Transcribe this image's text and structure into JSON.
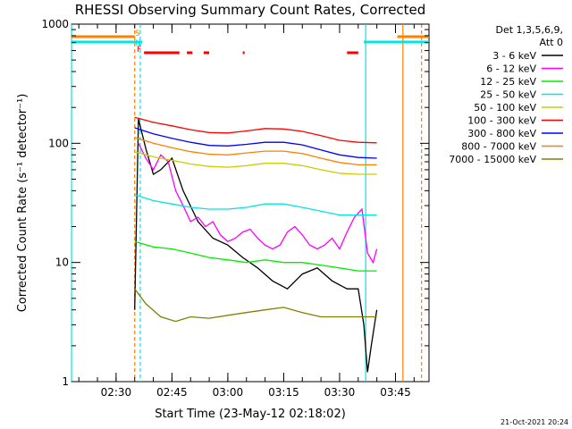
{
  "chart_data": {
    "type": "line",
    "title": "RHESSI Observing Summary Count Rates, Corrected",
    "xlabel": "Start Time (23-May-12 02:18:02)",
    "ylabel": "Corrected Count Rate (s⁻¹ detector⁻¹)",
    "y_scale": "log",
    "ylim": [
      1,
      1000
    ],
    "xlim": [
      "02:18:02",
      "03:54:00"
    ],
    "x_ticks": [
      "02:30",
      "02:45",
      "03:00",
      "03:15",
      "03:30",
      "03:45"
    ],
    "y_ticks": [
      "1",
      "10",
      "100",
      "1000"
    ],
    "grid": false,
    "legend_position": "top-right",
    "legend_header": [
      "Det 1,3,5,6,9,",
      "Att 0"
    ],
    "timestamp": "21-Oct-2021 20:24",
    "flags": [
      {
        "label": "S",
        "color": "#ff7f00",
        "on": [
          [
            "02:18:02",
            "02:35:00"
          ],
          [
            "03:45:30",
            "03:54:00"
          ]
        ]
      },
      {
        "label": "N",
        "color": "#00e5e5",
        "on": [
          [
            "02:18:02",
            "02:37:00"
          ],
          [
            "03:36:30",
            "03:54:00"
          ]
        ]
      },
      {
        "label": "F",
        "color": "#ff0000",
        "on": [
          [
            "02:37:30",
            "02:47:00"
          ],
          [
            "02:49:00",
            "02:50:30"
          ],
          [
            "02:53:30",
            "02:55:00"
          ],
          [
            "03:04:00",
            "03:04:30"
          ],
          [
            "03:32:00",
            "03:35:00"
          ]
        ]
      }
    ],
    "vertical_markers": [
      {
        "time": "02:18:02",
        "color": "#00e5e5",
        "style": "solid"
      },
      {
        "time": "02:35:00",
        "color": "#ff7f00",
        "style": "dashed"
      },
      {
        "time": "02:36:30",
        "color": "#00e5e5",
        "style": "dashed"
      },
      {
        "time": "03:37:00",
        "color": "#00e5e5",
        "style": "solid"
      },
      {
        "time": "03:47:00",
        "color": "#ff7f00",
        "style": "solid"
      },
      {
        "time": "03:52:00",
        "color": "#ff7f00",
        "style": "dashed"
      }
    ],
    "series": [
      {
        "name": "3 - 6 keV",
        "color": "#000000",
        "times": [
          "02:35:00",
          "02:36:00",
          "02:38:00",
          "02:40:00",
          "02:42:00",
          "02:45:00",
          "02:48:00",
          "02:52:00",
          "02:56:00",
          "03:00:00",
          "03:04:00",
          "03:08:00",
          "03:12:00",
          "03:16:00",
          "03:20:00",
          "03:24:00",
          "03:28:00",
          "03:32:00",
          "03:35:00",
          "03:36:30",
          "03:37:30",
          "03:38:30",
          "03:40:00"
        ],
        "values": [
          4,
          160,
          90,
          55,
          60,
          75,
          40,
          22,
          16,
          14,
          11,
          9,
          7,
          6,
          8,
          9,
          7,
          6,
          6,
          3,
          1.2,
          2,
          4
        ]
      },
      {
        "name": "6 - 12 keV",
        "color": "#ff00ff",
        "times": [
          "02:36:00",
          "02:38:00",
          "02:40:00",
          "02:42:00",
          "02:44:00",
          "02:46:00",
          "02:48:00",
          "02:50:00",
          "02:52:00",
          "02:54:00",
          "02:56:00",
          "02:58:00",
          "03:00:00",
          "03:02:00",
          "03:04:00",
          "03:06:00",
          "03:08:00",
          "03:10:00",
          "03:12:00",
          "03:14:00",
          "03:16:00",
          "03:18:00",
          "03:20:00",
          "03:22:00",
          "03:24:00",
          "03:26:00",
          "03:28:00",
          "03:30:00",
          "03:32:00",
          "03:34:00",
          "03:36:00",
          "03:37:30",
          "03:39:00",
          "03:40:00"
        ],
        "values": [
          100,
          75,
          60,
          80,
          70,
          40,
          30,
          22,
          24,
          20,
          22,
          17,
          15,
          16,
          18,
          19,
          16,
          14,
          13,
          14,
          18,
          20,
          17,
          14,
          13,
          14,
          16,
          13,
          18,
          24,
          28,
          12,
          10,
          13
        ]
      },
      {
        "name": "12 - 25 keV",
        "color": "#00ee00",
        "times": [
          "02:35:00",
          "02:40:00",
          "02:45:00",
          "02:50:00",
          "02:55:00",
          "03:00:00",
          "03:05:00",
          "03:10:00",
          "03:15:00",
          "03:20:00",
          "03:25:00",
          "03:30:00",
          "03:35:00",
          "03:40:00"
        ],
        "values": [
          15,
          13.5,
          13,
          12,
          11,
          10.5,
          10,
          10.5,
          10,
          10,
          9.5,
          9,
          8.5,
          8.5
        ]
      },
      {
        "name": "25 - 50 keV",
        "color": "#00e5e5",
        "times": [
          "02:35:00",
          "02:40:00",
          "02:45:00",
          "02:50:00",
          "02:55:00",
          "03:00:00",
          "03:05:00",
          "03:10:00",
          "03:15:00",
          "03:20:00",
          "03:25:00",
          "03:30:00",
          "03:35:00",
          "03:40:00"
        ],
        "values": [
          37,
          33,
          31,
          29,
          28,
          28,
          29,
          31,
          31,
          29,
          27,
          25,
          25,
          25
        ]
      },
      {
        "name": "50 - 100 keV",
        "color": "#cccc00",
        "times": [
          "02:35:00",
          "02:40:00",
          "02:45:00",
          "02:50:00",
          "02:55:00",
          "03:00:00",
          "03:05:00",
          "03:10:00",
          "03:15:00",
          "03:20:00",
          "03:25:00",
          "03:30:00",
          "03:35:00",
          "03:40:00"
        ],
        "values": [
          85,
          77,
          72,
          67,
          64,
          63,
          65,
          68,
          68,
          65,
          60,
          56,
          55,
          55
        ]
      },
      {
        "name": "100 - 300 keV",
        "color": "#ff0000",
        "times": [
          "02:35:00",
          "02:40:00",
          "02:45:00",
          "02:50:00",
          "02:55:00",
          "03:00:00",
          "03:05:00",
          "03:10:00",
          "03:15:00",
          "03:20:00",
          "03:25:00",
          "03:30:00",
          "03:35:00",
          "03:40:00"
        ],
        "values": [
          165,
          150,
          140,
          130,
          123,
          122,
          127,
          133,
          132,
          126,
          116,
          106,
          102,
          101
        ]
      },
      {
        "name": "300 - 800 keV",
        "color": "#0000ff",
        "times": [
          "02:35:00",
          "02:40:00",
          "02:45:00",
          "02:50:00",
          "02:55:00",
          "03:00:00",
          "03:05:00",
          "03:10:00",
          "03:15:00",
          "03:20:00",
          "03:25:00",
          "03:30:00",
          "03:35:00",
          "03:40:00"
        ],
        "values": [
          135,
          120,
          110,
          102,
          96,
          95,
          98,
          102,
          102,
          97,
          88,
          80,
          76,
          75
        ]
      },
      {
        "name": "800 - 7000 keV",
        "color": "#ff7f00",
        "times": [
          "02:35:00",
          "02:40:00",
          "02:45:00",
          "02:50:00",
          "02:55:00",
          "03:00:00",
          "03:05:00",
          "03:10:00",
          "03:15:00",
          "03:20:00",
          "03:25:00",
          "03:30:00",
          "03:35:00",
          "03:40:00"
        ],
        "values": [
          112,
          100,
          92,
          85,
          81,
          80,
          83,
          86,
          86,
          82,
          75,
          69,
          66,
          66
        ]
      },
      {
        "name": "7000 - 15000 keV",
        "color": "#808000",
        "times": [
          "02:35:00",
          "02:38:00",
          "02:42:00",
          "02:46:00",
          "02:50:00",
          "02:55:00",
          "03:00:00",
          "03:05:00",
          "03:10:00",
          "03:15:00",
          "03:20:00",
          "03:25:00",
          "03:30:00",
          "03:35:00",
          "03:40:00"
        ],
        "values": [
          6,
          4.5,
          3.5,
          3.2,
          3.5,
          3.4,
          3.6,
          3.8,
          4,
          4.2,
          3.8,
          3.5,
          3.5,
          3.5,
          3.5
        ]
      }
    ]
  }
}
